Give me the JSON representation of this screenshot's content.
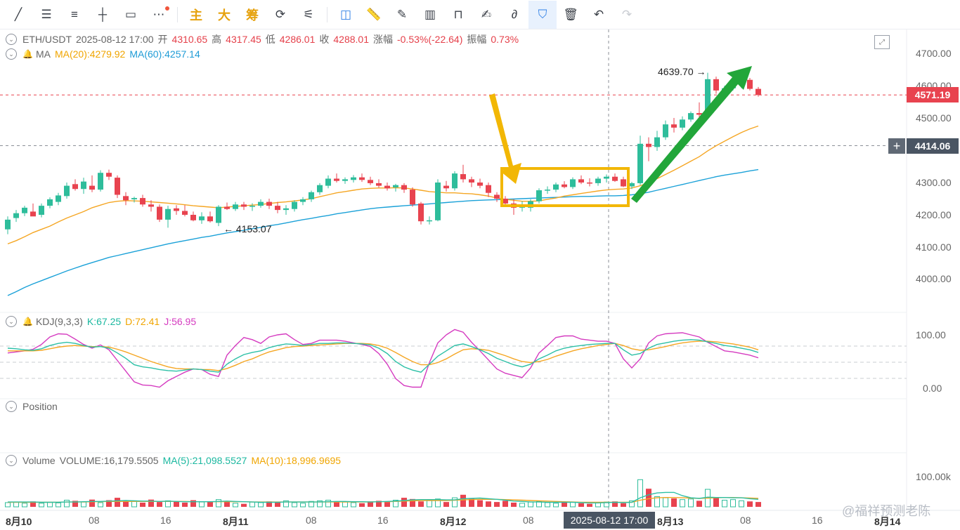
{
  "toolbar": {
    "main_label": "主",
    "big_label": "大",
    "chip_label": "筹",
    "tools": [
      "trend-line",
      "horizontal-ray",
      "parallel-channel",
      "horizontal-line",
      "rectangle",
      "more"
    ]
  },
  "header": {
    "symbol": "ETH/USDT",
    "time": "2025-08-12 17:00",
    "open_label": "开",
    "open": "4310.65",
    "high_label": "高",
    "high": "4317.45",
    "low_label": "低",
    "low": "4286.01",
    "close_label": "收",
    "close": "4288.01",
    "change_label": "涨幅",
    "change": "-0.53%(-22.64)",
    "amp_label": "振幅",
    "amp": "0.73%"
  },
  "ma": {
    "name": "MA",
    "ma20": "MA(20):4279.92",
    "ma60": "MA(60):4257.14"
  },
  "kdj": {
    "name": "KDJ(9,3,3)",
    "k": "K:67.25",
    "d": "D:72.41",
    "j": "J:56.95",
    "axis": [
      "100.00",
      "0.00"
    ]
  },
  "position": {
    "name": "Position"
  },
  "volume": {
    "name": "Volume",
    "vol": "VOLUME:16,179.5505",
    "ma5": "MA(5):21,098.5527",
    "ma10": "MA(10):18,996.9695",
    "axis": [
      "100.00k"
    ]
  },
  "price_axis": [
    "4700.00",
    "4600.00",
    "4500.00",
    "4300.00",
    "4200.00",
    "4100.00",
    "4000.00"
  ],
  "last_price": "4571.19",
  "cross_price": "4414.06",
  "cross_time": "2025-08-12 17:00",
  "high_marker": "4639.70",
  "low_marker": "4153.07",
  "time_axis": [
    "8月10",
    "08",
    "16",
    "8月11",
    "08",
    "16",
    "8月12",
    "08",
    "8月13",
    "08",
    "16",
    "8月14"
  ],
  "watermark": "@福祥预测老陈",
  "colors": {
    "up": "#2ebd9b",
    "down": "#e8434f",
    "ma20": "#f5a623",
    "ma60": "#1aa1d8",
    "box": "#f2b705",
    "arrow_gold": "#f2b705",
    "arrow_green": "#22a63a"
  },
  "chart_data": {
    "type": "candlestick",
    "pair": "ETH/USDT",
    "ylim": [
      3950,
      4730
    ],
    "last": 4571.19,
    "high": 4639.7,
    "low": 4153.07,
    "candles": [
      [
        4155,
        4195,
        4140,
        4185
      ],
      [
        4190,
        4215,
        4178,
        4205
      ],
      [
        4205,
        4228,
        4196,
        4222
      ],
      [
        4210,
        4235,
        4200,
        4195
      ],
      [
        4200,
        4235,
        4192,
        4228
      ],
      [
        4228,
        4254,
        4220,
        4248
      ],
      [
        4240,
        4268,
        4230,
        4260
      ],
      [
        4258,
        4300,
        4250,
        4290
      ],
      [
        4295,
        4310,
        4275,
        4280
      ],
      [
        4280,
        4315,
        4265,
        4303
      ],
      [
        4290,
        4322,
        4270,
        4278
      ],
      [
        4278,
        4338,
        4272,
        4330
      ],
      [
        4330,
        4340,
        4308,
        4318
      ],
      [
        4315,
        4322,
        4252,
        4262
      ],
      [
        4258,
        4270,
        4230,
        4245
      ],
      [
        4248,
        4256,
        4238,
        4252
      ],
      [
        4252,
        4262,
        4225,
        4232
      ],
      [
        4232,
        4245,
        4210,
        4225
      ],
      [
        4225,
        4232,
        4178,
        4185
      ],
      [
        4185,
        4228,
        4160,
        4218
      ],
      [
        4220,
        4230,
        4200,
        4212
      ],
      [
        4212,
        4230,
        4195,
        4200
      ],
      [
        4200,
        4210,
        4180,
        4183
      ],
      [
        4183,
        4208,
        4172,
        4195
      ],
      [
        4195,
        4210,
        4176,
        4180
      ],
      [
        4175,
        4230,
        4165,
        4225
      ],
      [
        4225,
        4238,
        4215,
        4218
      ],
      [
        4218,
        4240,
        4212,
        4232
      ],
      [
        4232,
        4240,
        4215,
        4225
      ],
      [
        4225,
        4236,
        4212,
        4228
      ],
      [
        4228,
        4248,
        4222,
        4240
      ],
      [
        4240,
        4250,
        4218,
        4228
      ],
      [
        4228,
        4240,
        4205,
        4215
      ],
      [
        4215,
        4230,
        4200,
        4220
      ],
      [
        4218,
        4245,
        4210,
        4240
      ],
      [
        4240,
        4255,
        4230,
        4248
      ],
      [
        4248,
        4275,
        4240,
        4270
      ],
      [
        4270,
        4298,
        4262,
        4292
      ],
      [
        4290,
        4322,
        4282,
        4312
      ],
      [
        4312,
        4328,
        4300,
        4305
      ],
      [
        4305,
        4316,
        4296,
        4310
      ],
      [
        4308,
        4323,
        4300,
        4316
      ],
      [
        4316,
        4328,
        4302,
        4308
      ],
      [
        4308,
        4318,
        4292,
        4298
      ],
      [
        4298,
        4310,
        4284,
        4290
      ],
      [
        4290,
        4300,
        4275,
        4282
      ],
      [
        4285,
        4296,
        4272,
        4292
      ],
      [
        4292,
        4298,
        4268,
        4278
      ],
      [
        4278,
        4285,
        4225,
        4232
      ],
      [
        4235,
        4240,
        4170,
        4180
      ],
      [
        4180,
        4195,
        4170,
        4183
      ],
      [
        4183,
        4310,
        4180,
        4300
      ],
      [
        4290,
        4305,
        4272,
        4282
      ],
      [
        4282,
        4335,
        4275,
        4328
      ],
      [
        4326,
        4355,
        4300,
        4310
      ],
      [
        4310,
        4318,
        4286,
        4300
      ],
      [
        4300,
        4312,
        4282,
        4290
      ],
      [
        4292,
        4300,
        4255,
        4268
      ],
      [
        4262,
        4270,
        4240,
        4250
      ],
      [
        4250,
        4258,
        4225,
        4235
      ],
      [
        4235,
        4248,
        4200,
        4222
      ],
      [
        4222,
        4242,
        4210,
        4228
      ],
      [
        4222,
        4248,
        4210,
        4242
      ],
      [
        4242,
        4282,
        4235,
        4276
      ],
      [
        4276,
        4288,
        4265,
        4278
      ],
      [
        4278,
        4300,
        4270,
        4294
      ],
      [
        4294,
        4304,
        4282,
        4286
      ],
      [
        4286,
        4316,
        4280,
        4310
      ],
      [
        4310,
        4322,
        4295,
        4300
      ],
      [
        4300,
        4313,
        4288,
        4298
      ],
      [
        4298,
        4318,
        4290,
        4312
      ],
      [
        4312,
        4325,
        4300,
        4318
      ],
      [
        4318,
        4328,
        4302,
        4305
      ],
      [
        4310,
        4318,
        4286,
        4288
      ],
      [
        4288,
        4302,
        4280,
        4298
      ],
      [
        4298,
        4445,
        4292,
        4420
      ],
      [
        4420,
        4440,
        4366,
        4410
      ],
      [
        4410,
        4460,
        4398,
        4440
      ],
      [
        4440,
        4492,
        4432,
        4480
      ],
      [
        4480,
        4500,
        4455,
        4470
      ],
      [
        4470,
        4505,
        4462,
        4495
      ],
      [
        4495,
        4520,
        4488,
        4515
      ],
      [
        4515,
        4548,
        4500,
        4510
      ],
      [
        4510,
        4640,
        4505,
        4620
      ],
      [
        4620,
        4628,
        4575,
        4585
      ],
      [
        4585,
        4600,
        4570,
        4592
      ],
      [
        4592,
        4615,
        4585,
        4602
      ],
      [
        4602,
        4618,
        4592,
        4612
      ],
      [
        4618,
        4624,
        4585,
        4590
      ],
      [
        4590,
        4596,
        4566,
        4571
      ]
    ],
    "ma20": [
      4110,
      4120,
      4132,
      4145,
      4155,
      4165,
      4178,
      4190,
      4200,
      4210,
      4222,
      4230,
      4238,
      4242,
      4244,
      4243,
      4242,
      4240,
      4238,
      4236,
      4234,
      4231,
      4228,
      4226,
      4224,
      4222,
      4224,
      4226,
      4228,
      4230,
      4232,
      4235,
      4238,
      4240,
      4243,
      4246,
      4250,
      4256,
      4262,
      4268,
      4272,
      4276,
      4280,
      4282,
      4283,
      4283,
      4284,
      4283,
      4280,
      4276,
      4272,
      4270,
      4268,
      4268,
      4266,
      4265,
      4262,
      4258,
      4252,
      4248,
      4245,
      4242,
      4242,
      4243,
      4248,
      4252,
      4258,
      4262,
      4266,
      4270,
      4274,
      4277,
      4279,
      4280,
      4283,
      4290,
      4300,
      4312,
      4325,
      4338,
      4352,
      4366,
      4380,
      4398,
      4414,
      4428,
      4442,
      4455,
      4466,
      4475
    ],
    "ma60": [
      3950,
      3962,
      3975,
      3986,
      3996,
      4006,
      4016,
      4026,
      4035,
      4044,
      4052,
      4060,
      4068,
      4074,
      4080,
      4086,
      4092,
      4098,
      4104,
      4110,
      4115,
      4120,
      4125,
      4130,
      4134,
      4139,
      4144,
      4148,
      4152,
      4157,
      4161,
      4166,
      4170,
      4175,
      4180,
      4185,
      4189,
      4194,
      4198,
      4203,
      4207,
      4211,
      4215,
      4219,
      4222,
      4224,
      4226,
      4228,
      4230,
      4232,
      4234,
      4236,
      4238,
      4240,
      4242,
      4244,
      4245,
      4246,
      4247,
      4248,
      4249,
      4250,
      4251,
      4252,
      4253,
      4254,
      4255,
      4256,
      4257,
      4257,
      4258,
      4259,
      4259,
      4260,
      4262,
      4265,
      4270,
      4276,
      4282,
      4288,
      4294,
      4300,
      4306,
      4312,
      4318,
      4323,
      4327,
      4331,
      4336,
      4340
    ],
    "kdj_k": [
      75,
      74,
      72,
      71,
      74,
      80,
      84,
      86,
      84,
      80,
      77,
      78,
      75,
      66,
      56,
      44,
      40,
      38,
      35,
      33,
      32,
      34,
      36,
      35,
      32,
      30,
      45,
      55,
      63,
      67,
      70,
      76,
      80,
      83,
      82,
      80,
      82,
      84,
      84,
      85,
      85,
      84,
      83,
      81,
      75,
      65,
      50,
      40,
      34,
      30,
      45,
      60,
      70,
      80,
      83,
      78,
      72,
      65,
      56,
      50,
      44,
      40,
      45,
      55,
      62,
      70,
      75,
      78,
      80,
      82,
      83,
      84,
      84,
      72,
      62,
      65,
      75,
      82,
      85,
      88,
      90,
      91,
      90,
      87,
      84,
      80,
      78,
      75,
      72,
      67
    ],
    "kdj_d": [
      70,
      70,
      70,
      70,
      71,
      74,
      77,
      79,
      80,
      79,
      78,
      78,
      77,
      73,
      68,
      62,
      56,
      50,
      45,
      40,
      37,
      36,
      36,
      35,
      35,
      33,
      37,
      43,
      50,
      55,
      62,
      68,
      72,
      76,
      78,
      79,
      80,
      81,
      82,
      83,
      84,
      84,
      84,
      83,
      80,
      75,
      67,
      58,
      50,
      44,
      44,
      48,
      55,
      64,
      72,
      74,
      73,
      71,
      66,
      61,
      55,
      50,
      48,
      50,
      54,
      60,
      65,
      70,
      74,
      77,
      80,
      82,
      84,
      80,
      74,
      71,
      72,
      75,
      78,
      82,
      85,
      87,
      88,
      88,
      87,
      85,
      83,
      80,
      77,
      72
    ],
    "kdj_j": [
      66,
      68,
      70,
      73,
      82,
      96,
      102,
      101,
      92,
      82,
      75,
      81,
      72,
      52,
      32,
      12,
      6,
      5,
      2,
      14,
      22,
      30,
      36,
      35,
      26,
      22,
      62,
      80,
      95,
      91,
      84,
      96,
      100,
      102,
      91,
      82,
      84,
      90,
      90,
      90,
      88,
      85,
      82,
      78,
      65,
      45,
      18,
      5,
      2,
      2,
      48,
      85,
      100,
      110,
      105,
      86,
      70,
      53,
      36,
      28,
      24,
      20,
      38,
      66,
      80,
      95,
      98,
      98,
      92,
      90,
      88,
      88,
      84,
      55,
      38,
      55,
      85,
      98,
      102,
      103,
      104,
      100,
      96,
      86,
      78,
      70,
      68,
      65,
      62,
      57
    ],
    "volume": [
      14,
      16,
      12,
      18,
      12,
      15,
      13,
      22,
      20,
      16,
      24,
      14,
      22,
      30,
      18,
      20,
      14,
      24,
      16,
      20,
      18,
      14,
      22,
      16,
      18,
      24,
      18,
      12,
      10,
      16,
      14,
      18,
      16,
      20,
      14,
      12,
      18,
      20,
      22,
      18,
      16,
      14,
      12,
      18,
      20,
      16,
      22,
      30,
      26,
      18,
      22,
      26,
      16,
      30,
      40,
      28,
      22,
      18,
      16,
      20,
      14,
      12,
      16,
      18,
      14,
      12,
      14,
      16,
      12,
      10,
      14,
      16,
      18,
      12,
      20,
      90,
      60,
      34,
      30,
      28,
      24,
      26,
      20,
      58,
      30,
      22,
      24,
      20,
      18,
      16
    ],
    "volume_ma5": [
      16,
      16,
      16,
      16,
      15,
      15,
      15,
      16,
      16,
      17,
      18,
      18,
      19,
      20,
      21,
      20,
      19,
      19,
      18,
      19,
      18,
      17,
      17,
      17,
      17,
      18,
      19,
      18,
      17,
      16,
      15,
      15,
      15,
      16,
      16,
      16,
      16,
      16,
      17,
      18,
      18,
      17,
      17,
      16,
      17,
      18,
      19,
      21,
      23,
      24,
      24,
      24,
      23,
      23,
      27,
      28,
      29,
      27,
      25,
      22,
      19,
      18,
      16,
      16,
      15,
      15,
      15,
      15,
      14,
      13,
      13,
      14,
      15,
      14,
      15,
      30,
      40,
      46,
      48,
      48,
      37,
      30,
      28,
      32,
      31,
      31,
      30,
      30,
      27,
      25
    ],
    "volume_ma10": [
      15,
      15,
      15,
      15,
      15,
      15,
      15,
      16,
      16,
      16,
      17,
      17,
      18,
      18,
      18,
      18,
      18,
      18,
      18,
      18,
      18,
      18,
      17,
      17,
      17,
      17,
      17,
      17,
      17,
      16,
      16,
      16,
      16,
      16,
      16,
      16,
      16,
      16,
      16,
      16,
      16,
      16,
      16,
      16,
      17,
      17,
      18,
      19,
      20,
      21,
      21,
      21,
      21,
      22,
      23,
      24,
      25,
      25,
      25,
      24,
      23,
      22,
      21,
      20,
      19,
      18,
      17,
      16,
      15,
      15,
      15,
      15,
      15,
      15,
      15,
      22,
      27,
      30,
      31,
      31,
      30,
      29,
      28,
      29,
      30,
      31,
      31,
      30,
      29,
      28
    ]
  }
}
